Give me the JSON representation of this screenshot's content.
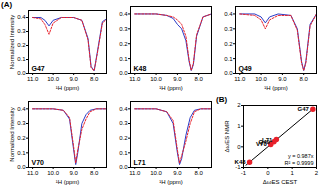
{
  "chart_data": [
    {
      "type": "line",
      "panel_label": "(A)",
      "annotations": [
        "G47"
      ],
      "y_label": "Normalized Intensity",
      "x_label": "¹H (ppm)",
      "xlim": [
        11.2,
        7.4
      ],
      "xticks": [
        {
          "value": 11,
          "label": "11.0"
        },
        {
          "value": 10,
          "label": "10.0"
        },
        {
          "value": 9,
          "label": "9.0"
        },
        {
          "value": 8,
          "label": "8.0"
        }
      ],
      "ylim": [
        0,
        0.45
      ],
      "yticks": [
        {
          "value": 0,
          "label": "0.0"
        },
        0.1,
        0.2,
        0.3,
        0.4
      ],
      "x": [
        11,
        10.6,
        10.4,
        10.2,
        10.0,
        9.6,
        9.0,
        8.6,
        8.3,
        8.15,
        8.0,
        7.85,
        7.6,
        7.3
      ],
      "series": [
        {
          "color": "#2a3cc8",
          "line_style": "solid",
          "values": [
            0.4,
            0.4,
            0.38,
            0.34,
            0.38,
            0.4,
            0.4,
            0.38,
            0.25,
            0.05,
            0.02,
            0.15,
            0.37,
            0.4
          ]
        },
        {
          "color": "#e8202a",
          "line_style": "dashed",
          "values": [
            0.4,
            0.39,
            0.35,
            0.28,
            0.36,
            0.4,
            0.4,
            0.38,
            0.24,
            0.04,
            0.02,
            0.14,
            0.36,
            0.4
          ]
        }
      ]
    },
    {
      "type": "line",
      "annotations": [
        "K48"
      ],
      "x_label": "¹H (ppm)",
      "xlim": [
        11.2,
        7.4
      ],
      "xticks": [
        {
          "value": 11,
          "label": "11.0"
        },
        {
          "value": 10,
          "label": "10.0"
        },
        {
          "value": 9,
          "label": "9.0"
        },
        {
          "value": 8,
          "label": "8.0"
        }
      ],
      "ylim": [
        0,
        0.45
      ],
      "yticks": [
        {
          "value": 0,
          "label": "0.0"
        },
        0.1,
        0.2,
        0.3,
        0.4
      ],
      "x": [
        11,
        10,
        9.5,
        9.2,
        9.0,
        8.8,
        8.6,
        8.45,
        8.35,
        8.25,
        8.1,
        7.8,
        7.4
      ],
      "series": [
        {
          "color": "#2a3cc8",
          "line_style": "solid",
          "values": [
            0.4,
            0.4,
            0.39,
            0.37,
            0.33,
            0.3,
            0.22,
            0.08,
            0.02,
            0.06,
            0.25,
            0.38,
            0.4
          ]
        },
        {
          "color": "#e8202a",
          "line_style": "dashed",
          "values": [
            0.4,
            0.4,
            0.39,
            0.38,
            0.36,
            0.33,
            0.25,
            0.09,
            0.02,
            0.07,
            0.26,
            0.38,
            0.4
          ]
        }
      ]
    },
    {
      "type": "line",
      "annotations": [
        "Q49"
      ],
      "x_label": "¹H (ppm)",
      "xlim": [
        11.2,
        7.4
      ],
      "xticks": [
        {
          "value": 11,
          "label": "11.0"
        },
        {
          "value": 10,
          "label": "10.0"
        },
        {
          "value": 9,
          "label": "9.0"
        },
        {
          "value": 8,
          "label": "8.0"
        }
      ],
      "ylim": [
        0,
        0.45
      ],
      "yticks": [
        {
          "value": 0,
          "label": "0.0"
        },
        0.1,
        0.2,
        0.3,
        0.4
      ],
      "x": [
        11,
        10.3,
        10.0,
        9.8,
        9.6,
        9.2,
        8.6,
        8.3,
        8.1,
        8.0,
        7.9,
        7.7,
        7.4
      ],
      "series": [
        {
          "color": "#2a3cc8",
          "line_style": "solid",
          "values": [
            0.4,
            0.4,
            0.38,
            0.34,
            0.38,
            0.4,
            0.39,
            0.3,
            0.08,
            0.02,
            0.08,
            0.33,
            0.4
          ]
        },
        {
          "color": "#e8202a",
          "line_style": "dashed",
          "values": [
            0.4,
            0.39,
            0.36,
            0.3,
            0.36,
            0.39,
            0.39,
            0.29,
            0.07,
            0.02,
            0.07,
            0.32,
            0.4
          ]
        }
      ]
    },
    {
      "type": "line",
      "annotations": [
        "V70"
      ],
      "y_label": "Normalized Intensity",
      "x_label": "¹H (ppm)",
      "xlim": [
        11.2,
        7.4
      ],
      "xticks": [
        {
          "value": 11,
          "label": "11.0"
        },
        {
          "value": 10,
          "label": "10.0"
        },
        {
          "value": 9,
          "label": "9.0"
        },
        {
          "value": 8,
          "label": "8.0"
        }
      ],
      "ylim": [
        0,
        0.45
      ],
      "yticks": [
        {
          "value": 0,
          "label": "0.0"
        },
        0.1,
        0.2,
        0.3,
        0.4
      ],
      "x": [
        11,
        10,
        9.5,
        9.2,
        9.0,
        8.9,
        8.8,
        8.6,
        8.4,
        8.2,
        7.9,
        7.4
      ],
      "series": [
        {
          "color": "#2a3cc8",
          "line_style": "solid",
          "values": [
            0.4,
            0.4,
            0.39,
            0.33,
            0.12,
            0.02,
            0.1,
            0.3,
            0.36,
            0.39,
            0.4,
            0.4
          ]
        },
        {
          "color": "#e8202a",
          "line_style": "dashed",
          "values": [
            0.4,
            0.4,
            0.39,
            0.34,
            0.14,
            0.03,
            0.12,
            0.26,
            0.33,
            0.38,
            0.4,
            0.4
          ]
        }
      ]
    },
    {
      "type": "line",
      "annotations": [
        "L71"
      ],
      "x_label": "¹H (ppm)",
      "xlim": [
        11.2,
        7.4
      ],
      "xticks": [
        {
          "value": 11,
          "label": "11.0"
        },
        {
          "value": 10,
          "label": "10.0"
        },
        {
          "value": 9,
          "label": "9.0"
        },
        {
          "value": 8,
          "label": "8.0"
        }
      ],
      "ylim": [
        0,
        0.45
      ],
      "yticks": [
        {
          "value": 0,
          "label": "0.0"
        },
        0.1,
        0.2,
        0.3,
        0.4
      ],
      "x": [
        11,
        10,
        9.5,
        9.2,
        9.0,
        8.9,
        8.8,
        8.6,
        8.4,
        8.2,
        7.9,
        7.4
      ],
      "series": [
        {
          "color": "#2a3cc8",
          "line_style": "solid",
          "values": [
            0.4,
            0.4,
            0.38,
            0.3,
            0.1,
            0.02,
            0.06,
            0.22,
            0.34,
            0.39,
            0.4,
            0.4
          ]
        },
        {
          "color": "#e8202a",
          "line_style": "dashed",
          "values": [
            0.4,
            0.4,
            0.38,
            0.32,
            0.12,
            0.03,
            0.08,
            0.18,
            0.3,
            0.38,
            0.4,
            0.4
          ]
        }
      ]
    },
    {
      "type": "scatter",
      "panel_label": "(B)",
      "x_label": "ΔωES CEST",
      "y_label": "ΔωES NMR",
      "annotations": [
        "y = 0.987x",
        "R² = 0.9999"
      ],
      "xlim": [
        -1,
        2
      ],
      "xticks": [
        -1,
        0,
        1,
        2
      ],
      "ylim": [
        -1,
        2
      ],
      "yticks": [
        -1,
        0,
        1,
        2
      ],
      "x": [
        1.85,
        -0.75,
        0.25,
        0.12,
        0.35
      ],
      "values": [
        1.82,
        -0.74,
        0.24,
        0.11,
        0.35
      ],
      "labels": [
        "G47",
        "K48",
        "Q49",
        "V70",
        "L71"
      ],
      "color": "#e8202a",
      "marker": "circle",
      "fit": {
        "x": [
          -0.9,
          1.9
        ],
        "values": [
          -0.888,
          1.875
        ],
        "color": "#000000"
      }
    }
  ]
}
